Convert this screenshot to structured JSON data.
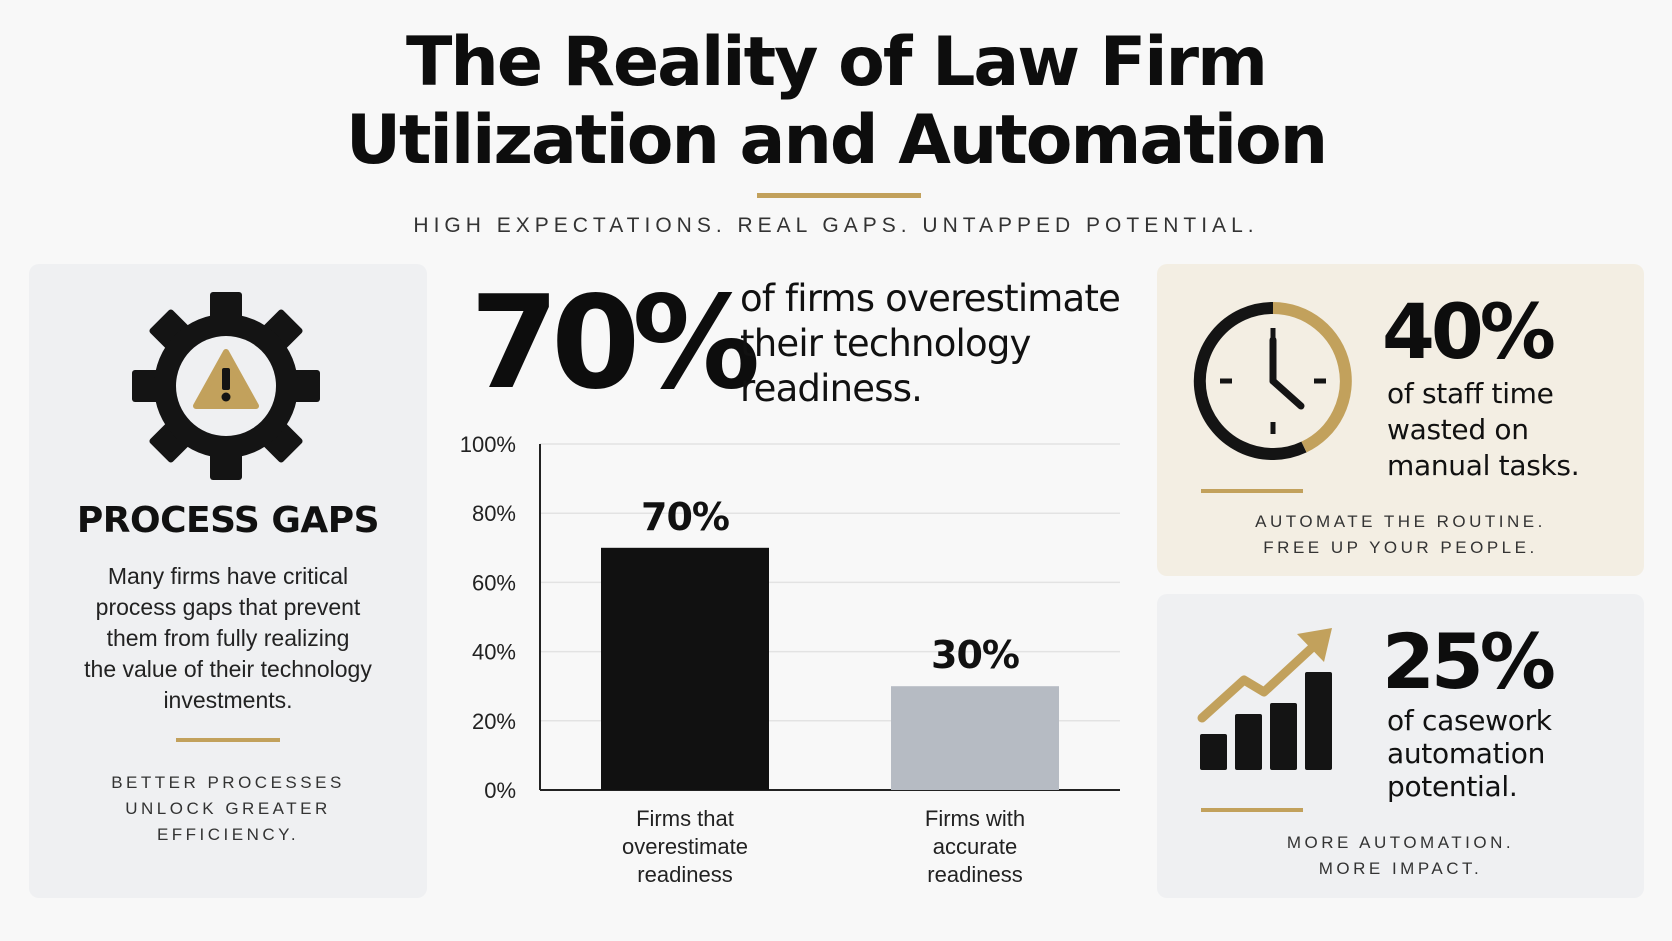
{
  "title": {
    "line1": "The Reality of Law Firm",
    "line2": "Utilization and Automation"
  },
  "subtitle": "HIGH EXPECTATIONS. REAL GAPS. UNTAPPED POTENTIAL.",
  "left_card": {
    "icon": "gear-warning-icon",
    "heading": "PROCESS GAPS",
    "body_lines": [
      "Many firms have critical",
      "process gaps that prevent",
      "them from fully realizing",
      "the value of their technology",
      "investments."
    ],
    "tagline_lines": [
      "BETTER PROCESSES",
      "UNLOCK GREATER",
      "EFFICIENCY."
    ]
  },
  "center": {
    "big_stat": "70%",
    "statement_lines": [
      "of firms overestimate",
      "their technology",
      "readiness."
    ]
  },
  "time_card": {
    "icon": "clock-icon",
    "stat": "40%",
    "text_lines": [
      "of staff time",
      "wasted on",
      "manual tasks."
    ],
    "tagline_lines": [
      "AUTOMATE THE ROUTINE.",
      "FREE UP YOUR PEOPLE."
    ]
  },
  "automation_card": {
    "icon": "growth-chart-icon",
    "stat": "25%",
    "text_lines": [
      "of casework",
      "automation",
      "potential."
    ],
    "tagline_lines": [
      "MORE AUTOMATION.",
      "MORE IMPACT."
    ]
  },
  "colors": {
    "gold": "#c2a15c",
    "black": "#111111",
    "gray_bar": "#b6bbc3"
  },
  "chart_data": {
    "type": "bar",
    "categories": [
      [
        "Firms that",
        "overestimate",
        "readiness"
      ],
      [
        "Firms with",
        "accurate",
        "readiness"
      ]
    ],
    "values": [
      70,
      30
    ],
    "value_labels": [
      "70%",
      "30%"
    ],
    "bar_colors": [
      "#111111",
      "#b6bbc3"
    ],
    "ylim": [
      0,
      100
    ],
    "yticks": [
      0,
      20,
      40,
      60,
      80,
      100
    ],
    "ytick_labels": [
      "0%",
      "20%",
      "40%",
      "60%",
      "80%",
      "100%"
    ],
    "grid": true,
    "legend": "none"
  }
}
